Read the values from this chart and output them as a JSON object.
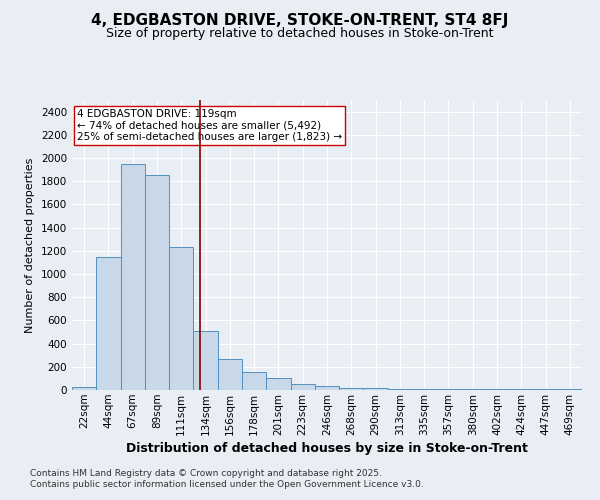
{
  "title1": "4, EDGBASTON DRIVE, STOKE-ON-TRENT, ST4 8FJ",
  "title2": "Size of property relative to detached houses in Stoke-on-Trent",
  "xlabel": "Distribution of detached houses by size in Stoke-on-Trent",
  "ylabel": "Number of detached properties",
  "categories": [
    "22sqm",
    "44sqm",
    "67sqm",
    "89sqm",
    "111sqm",
    "134sqm",
    "156sqm",
    "178sqm",
    "201sqm",
    "223sqm",
    "246sqm",
    "268sqm",
    "290sqm",
    "313sqm",
    "335sqm",
    "357sqm",
    "380sqm",
    "402sqm",
    "424sqm",
    "447sqm",
    "469sqm"
  ],
  "values": [
    25,
    1150,
    1950,
    1850,
    1230,
    510,
    270,
    155,
    100,
    55,
    35,
    20,
    15,
    10,
    5,
    5,
    5,
    5,
    5,
    5,
    10
  ],
  "bar_color": "#c8d8e8",
  "bar_edge_color": "#5090c0",
  "vline_x_index": 4.75,
  "vline_color": "#8b0000",
  "annotation_text": "4 EDGBASTON DRIVE: 119sqm\n← 74% of detached houses are smaller (5,492)\n25% of semi-detached houses are larger (1,823) →",
  "annotation_box_color": "white",
  "annotation_box_edge": "#cc0000",
  "ylim": [
    0,
    2500
  ],
  "yticks": [
    0,
    200,
    400,
    600,
    800,
    1000,
    1200,
    1400,
    1600,
    1800,
    2000,
    2200,
    2400
  ],
  "background_color": "#e8eef4",
  "grid_color": "#ffffff",
  "footer1": "Contains HM Land Registry data © Crown copyright and database right 2025.",
  "footer2": "Contains public sector information licensed under the Open Government Licence v3.0.",
  "title1_fontsize": 11,
  "title2_fontsize": 9,
  "xlabel_fontsize": 9,
  "ylabel_fontsize": 8,
  "tick_fontsize": 7.5,
  "annotation_fontsize": 7.5,
  "footer_fontsize": 6.5
}
